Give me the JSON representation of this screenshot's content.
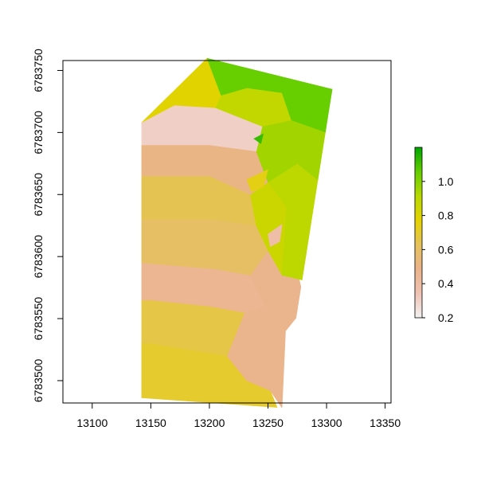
{
  "chart_data": {
    "type": "heatmap",
    "title": "",
    "xlabel": "",
    "ylabel": "",
    "xlim": [
      13075,
      13355
    ],
    "ylim": [
      6783482,
      6783758
    ],
    "x_ticks": [
      13100,
      13150,
      13200,
      13250,
      13300,
      13350
    ],
    "x_tick_labels": [
      "13100",
      "13150",
      "13200",
      "13250",
      "13300",
      "13350"
    ],
    "y_ticks": [
      6783500,
      6783550,
      6783600,
      6783650,
      6783700,
      6783750
    ],
    "y_tick_labels": [
      "6783500",
      "6783550",
      "6783600",
      "6783650",
      "6783700",
      "6783750"
    ],
    "grid": false,
    "legend": {
      "position": "right",
      "range": [
        0.2,
        1.2
      ],
      "ticks": [
        0.2,
        0.4,
        0.6,
        0.8,
        1.0
      ],
      "tick_labels": [
        "0.2",
        "0.4",
        "0.6",
        "0.8",
        "1.0"
      ],
      "colors": [
        "#F2F2F2",
        "#EFC2B3",
        "#EAB38A",
        "#E5C25A",
        "#E4D300",
        "#B7D800",
        "#63CD00",
        "#00A600"
      ]
    },
    "field_extent": [
      [
        13142,
        6783708
      ],
      [
        13198,
        6783760
      ],
      [
        13305,
        6783735
      ],
      [
        13262,
        6783478
      ],
      [
        13142,
        6783486
      ]
    ],
    "cells": [
      {
        "value": 0.7,
        "polygon": [
          [
            13142,
            6783486
          ],
          [
            13258,
            6783478
          ],
          [
            13252,
            6783492
          ],
          [
            13232,
            6783500
          ],
          [
            13215,
            6783520
          ],
          [
            13150,
            6783530
          ],
          [
            13142,
            6783530
          ]
        ]
      },
      {
        "value": 0.48,
        "polygon": [
          [
            13232,
            6783500
          ],
          [
            13252,
            6783492
          ],
          [
            13262,
            6783478
          ],
          [
            13265,
            6783540
          ],
          [
            13248,
            6783560
          ],
          [
            13230,
            6783555
          ],
          [
            13215,
            6783520
          ]
        ]
      },
      {
        "value": 0.66,
        "polygon": [
          [
            13142,
            6783530
          ],
          [
            13150,
            6783530
          ],
          [
            13215,
            6783520
          ],
          [
            13230,
            6783555
          ],
          [
            13200,
            6783560
          ],
          [
            13150,
            6783565
          ],
          [
            13142,
            6783565
          ]
        ]
      },
      {
        "value": 0.46,
        "polygon": [
          [
            13142,
            6783565
          ],
          [
            13150,
            6783565
          ],
          [
            13200,
            6783560
          ],
          [
            13230,
            6783555
          ],
          [
            13248,
            6783560
          ],
          [
            13235,
            6783585
          ],
          [
            13205,
            6783590
          ],
          [
            13142,
            6783595
          ]
        ]
      },
      {
        "value": 0.48,
        "polygon": [
          [
            13248,
            6783560
          ],
          [
            13265,
            6783540
          ],
          [
            13282,
            6783560
          ],
          [
            13272,
            6783600
          ],
          [
            13250,
            6783605
          ],
          [
            13235,
            6783585
          ]
        ]
      },
      {
        "value": 0.34,
        "polygon": [
          [
            13250,
            6783605
          ],
          [
            13272,
            6783600
          ],
          [
            13290,
            6783610
          ],
          [
            13284,
            6783580
          ],
          [
            13262,
            6783585
          ]
        ]
      },
      {
        "value": 0.6,
        "polygon": [
          [
            13142,
            6783595
          ],
          [
            13205,
            6783590
          ],
          [
            13235,
            6783585
          ],
          [
            13250,
            6783605
          ],
          [
            13240,
            6783625
          ],
          [
            13205,
            6783630
          ],
          [
            13142,
            6783630
          ]
        ]
      },
      {
        "value": 0.64,
        "polygon": [
          [
            13142,
            6783630
          ],
          [
            13205,
            6783630
          ],
          [
            13240,
            6783625
          ],
          [
            13235,
            6783650
          ],
          [
            13200,
            6783665
          ],
          [
            13142,
            6783665
          ]
        ]
      },
      {
        "value": 0.85,
        "polygon": [
          [
            13235,
            6783650
          ],
          [
            13240,
            6783625
          ],
          [
            13250,
            6783605
          ],
          [
            13262,
            6783585
          ],
          [
            13266,
            6783640
          ],
          [
            13250,
            6783660
          ]
        ]
      },
      {
        "value": 0.5,
        "polygon": [
          [
            13142,
            6783665
          ],
          [
            13200,
            6783665
          ],
          [
            13235,
            6783650
          ],
          [
            13250,
            6783660
          ],
          [
            13240,
            6783685
          ],
          [
            13200,
            6783690
          ],
          [
            13142,
            6783690
          ]
        ]
      },
      {
        "value": 0.9,
        "polygon": [
          [
            13250,
            6783660
          ],
          [
            13266,
            6783640
          ],
          [
            13262,
            6783585
          ],
          [
            13284,
            6783580
          ],
          [
            13290,
            6783610
          ],
          [
            13295,
            6783660
          ],
          [
            13275,
            6783675
          ]
        ]
      },
      {
        "value": 0.95,
        "polygon": [
          [
            13240,
            6783685
          ],
          [
            13250,
            6783660
          ],
          [
            13275,
            6783675
          ],
          [
            13295,
            6783660
          ],
          [
            13300,
            6783700
          ],
          [
            13270,
            6783710
          ],
          [
            13245,
            6783705
          ]
        ]
      },
      {
        "value": 0.3,
        "polygon": [
          [
            13142,
            6783690
          ],
          [
            13200,
            6783690
          ],
          [
            13240,
            6783685
          ],
          [
            13245,
            6783705
          ],
          [
            13205,
            6783720
          ],
          [
            13170,
            6783722
          ],
          [
            13142,
            6783708
          ]
        ]
      },
      {
        "value": 0.88,
        "polygon": [
          [
            13205,
            6783720
          ],
          [
            13245,
            6783705
          ],
          [
            13270,
            6783710
          ],
          [
            13262,
            6783732
          ],
          [
            13232,
            6783736
          ],
          [
            13210,
            6783730
          ]
        ]
      },
      {
        "value": 0.78,
        "polygon": [
          [
            13142,
            6783708
          ],
          [
            13170,
            6783722
          ],
          [
            13205,
            6783720
          ],
          [
            13210,
            6783730
          ],
          [
            13198,
            6783760
          ]
        ]
      },
      {
        "value": 1.05,
        "polygon": [
          [
            13198,
            6783760
          ],
          [
            13210,
            6783730
          ],
          [
            13232,
            6783736
          ],
          [
            13262,
            6783732
          ],
          [
            13270,
            6783710
          ],
          [
            13300,
            6783700
          ],
          [
            13305,
            6783735
          ]
        ]
      },
      {
        "value": 0.38,
        "polygon": [
          [
            13250,
            6783618
          ],
          [
            13262,
            6783626
          ],
          [
            13260,
            6783612
          ],
          [
            13252,
            6783608
          ]
        ]
      },
      {
        "value": 1.12,
        "polygon": [
          [
            13238,
            6783695
          ],
          [
            13246,
            6783699
          ],
          [
            13244,
            6783691
          ]
        ]
      },
      {
        "value": 0.74,
        "polygon": [
          [
            13232,
            6783662
          ],
          [
            13250,
            6783670
          ],
          [
            13246,
            6783656
          ],
          [
            13236,
            6783652
          ]
        ]
      }
    ]
  }
}
